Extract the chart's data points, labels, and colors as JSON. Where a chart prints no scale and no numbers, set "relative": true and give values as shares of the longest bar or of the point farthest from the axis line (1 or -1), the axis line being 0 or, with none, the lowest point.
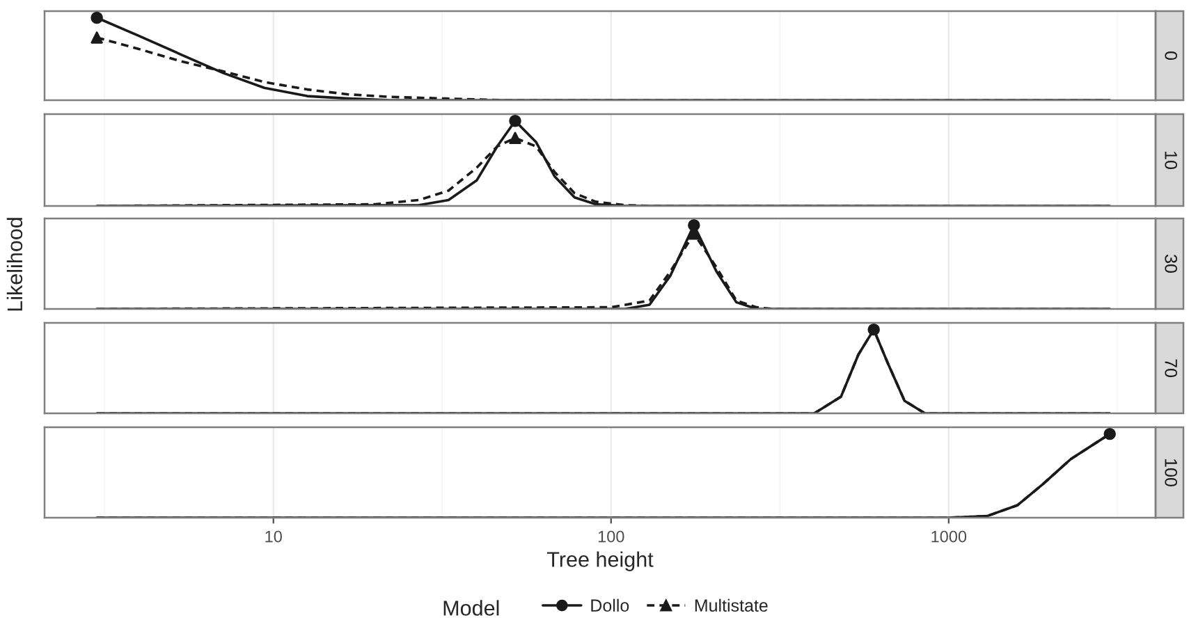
{
  "chart_data": [
    {
      "type": "line",
      "y2label": "0",
      "relative": true,
      "xlim": [
        2.1,
        4100
      ],
      "xticks": [
        10,
        100,
        1000
      ],
      "log": "x",
      "grid": "x",
      "tick_labels": false,
      "series": [
        {
          "color": "#1a1a1a",
          "line_style": "solid",
          "x": [
            3,
            4.0,
            5.35,
            7.1,
            9.4,
            12.6,
            16.7,
            22.2,
            3000
          ],
          "values": [
            1,
            0.78,
            0.55,
            0.33,
            0.15,
            0.05,
            0.02,
            0,
            0
          ]
        },
        {
          "color": "#1a1a1a",
          "line_style": "dashed",
          "x": [
            3,
            4.0,
            5.35,
            7.1,
            9.4,
            12.6,
            16.7,
            22.2,
            32.5,
            47.5,
            3000
          ],
          "values": [
            0.76,
            0.62,
            0.47,
            0.35,
            0.22,
            0.13,
            0.07,
            0.04,
            0.02,
            0,
            0
          ]
        },
        {
          "type": "scatter",
          "color": "#1a1a1a",
          "marker": "circle",
          "x": [
            3
          ],
          "values": [
            1
          ]
        },
        {
          "type": "scatter",
          "color": "#1a1a1a",
          "marker": "triangle",
          "x": [
            3
          ],
          "values": [
            0.76
          ]
        }
      ]
    },
    {
      "type": "line",
      "y2label": "10",
      "relative": true,
      "xlim": [
        2.1,
        4100
      ],
      "xticks": [
        10,
        100,
        1000
      ],
      "log": "x",
      "grid": "x",
      "tick_labels": false,
      "series": [
        {
          "color": "#1a1a1a",
          "line_style": "solid",
          "x": [
            3,
            27,
            33,
            40,
            46,
            52,
            60,
            68,
            78,
            90,
            110,
            3000
          ],
          "values": [
            0,
            0.01,
            0.07,
            0.3,
            0.7,
            1,
            0.75,
            0.35,
            0.1,
            0.02,
            0,
            0
          ]
        },
        {
          "color": "#1a1a1a",
          "line_style": "dashed",
          "x": [
            3,
            20,
            27,
            33,
            40,
            46,
            52,
            60,
            68,
            78,
            90,
            110,
            130,
            3000
          ],
          "values": [
            0,
            0.02,
            0.07,
            0.18,
            0.45,
            0.7,
            0.8,
            0.7,
            0.4,
            0.15,
            0.05,
            0.01,
            0,
            0
          ]
        },
        {
          "type": "scatter",
          "color": "#1a1a1a",
          "marker": "circle",
          "x": [
            52
          ],
          "values": [
            1
          ]
        },
        {
          "type": "scatter",
          "color": "#1a1a1a",
          "marker": "triangle",
          "x": [
            52
          ],
          "values": [
            0.8
          ]
        }
      ]
    },
    {
      "type": "line",
      "y2label": "30",
      "ylabel": "Likelihood",
      "relative": true,
      "xlim": [
        2.1,
        4100
      ],
      "xticks": [
        10,
        100,
        1000
      ],
      "log": "x",
      "grid": "x",
      "tick_labels": false,
      "series": [
        {
          "color": "#1a1a1a",
          "line_style": "solid",
          "x": [
            3,
            110,
            130,
            150,
            176,
            205,
            235,
            270,
            3000
          ],
          "values": [
            0,
            0,
            0.05,
            0.4,
            1,
            0.45,
            0.08,
            0,
            0
          ]
        },
        {
          "color": "#1a1a1a",
          "line_style": "dashed",
          "x": [
            3,
            100,
            130,
            150,
            176,
            205,
            235,
            270,
            300,
            3000
          ],
          "values": [
            0,
            0.02,
            0.1,
            0.45,
            0.9,
            0.5,
            0.1,
            0.02,
            0,
            0
          ]
        },
        {
          "type": "scatter",
          "color": "#1a1a1a",
          "marker": "circle",
          "x": [
            176
          ],
          "values": [
            1
          ]
        },
        {
          "type": "scatter",
          "color": "#1a1a1a",
          "marker": "triangle",
          "x": [
            176
          ],
          "values": [
            0.9
          ]
        }
      ]
    },
    {
      "type": "line",
      "y2label": "70",
      "relative": true,
      "xlim": [
        2.1,
        4100
      ],
      "xticks": [
        10,
        100,
        1000
      ],
      "log": "x",
      "grid": "x",
      "tick_labels": false,
      "series": [
        {
          "color": "#1a1a1a",
          "line_style": "solid",
          "x": [
            3,
            400,
            480,
            540,
            600,
            660,
            740,
            850,
            3000
          ],
          "values": [
            0,
            0,
            0.2,
            0.7,
            1,
            0.6,
            0.15,
            0,
            0
          ]
        },
        {
          "color": "#1a1a1a",
          "line_style": "dashed",
          "x": [
            3,
            400,
            480,
            540,
            600,
            660,
            740,
            850,
            3000
          ],
          "values": [
            0,
            0,
            0.2,
            0.7,
            1,
            0.6,
            0.15,
            0,
            0
          ]
        },
        {
          "type": "scatter",
          "color": "#1a1a1a",
          "marker": "circle",
          "x": [
            600
          ],
          "values": [
            1
          ]
        }
      ]
    },
    {
      "type": "line",
      "y2label": "100",
      "xlabel": "Tree height",
      "legend_title": "Model",
      "legend": "bottom",
      "relative": true,
      "xlim": [
        2.1,
        4100
      ],
      "xticks": [
        10,
        100,
        1000
      ],
      "log": "x",
      "grid": "x",
      "tick_labels": "x",
      "series": [
        {
          "name": "Dollo",
          "color": "#1a1a1a",
          "line_style": "solid",
          "x": [
            3,
            1000,
            1300,
            1600,
            1900,
            2300,
            3000
          ],
          "values": [
            0,
            0,
            0.02,
            0.15,
            0.4,
            0.7,
            1
          ]
        },
        {
          "name": "Multistate",
          "color": "#1a1a1a",
          "line_style": "dashed",
          "x": [
            3,
            1000,
            1300,
            1600,
            1900,
            2300,
            3000
          ],
          "values": [
            0,
            0,
            0.02,
            0.15,
            0.4,
            0.7,
            1
          ]
        },
        {
          "type": "scatter",
          "color": "#1a1a1a",
          "marker": "circle",
          "x": [
            3000
          ],
          "values": [
            1
          ]
        }
      ]
    }
  ]
}
